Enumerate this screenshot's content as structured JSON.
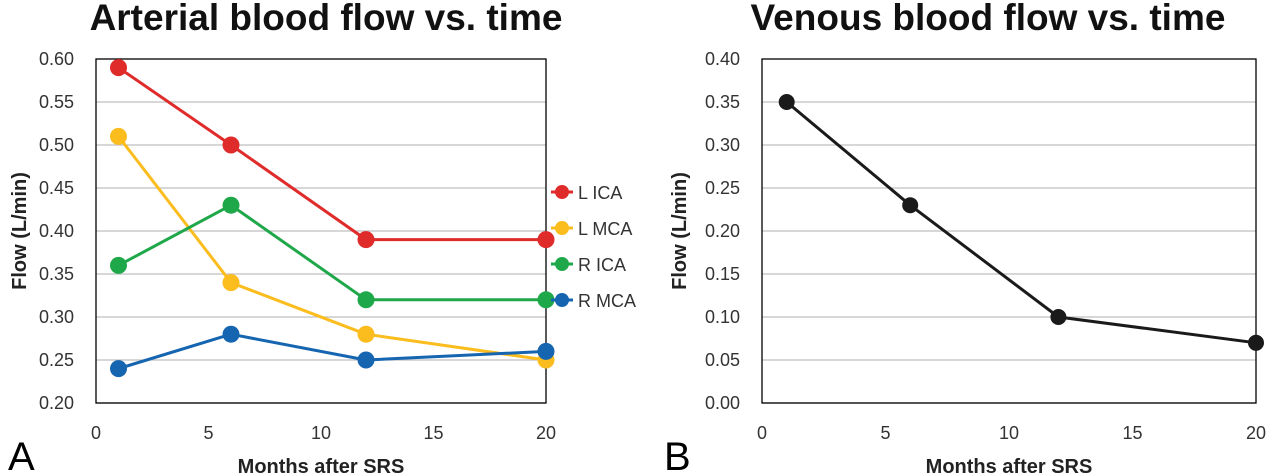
{
  "panels": {
    "a": {
      "label": "A"
    },
    "b": {
      "label": "B"
    }
  },
  "chart_data": [
    {
      "type": "line",
      "title": "Arterial blood flow vs. time",
      "xlabel": "Months after SRS",
      "ylabel": "Flow (L/min)",
      "xlim": [
        0,
        20
      ],
      "ylim": [
        0.2,
        0.6
      ],
      "xticks": [
        "0",
        "5",
        "10",
        "15",
        "20"
      ],
      "yticks": [
        "0.20",
        "0.25",
        "0.30",
        "0.35",
        "0.40",
        "0.45",
        "0.50",
        "0.55",
        "0.60"
      ],
      "grid": true,
      "legend": "right",
      "x": [
        1,
        6,
        12,
        20
      ],
      "series": [
        {
          "name": "L ICA",
          "color": "#e02b2b",
          "values": [
            0.59,
            0.5,
            0.39,
            0.39
          ]
        },
        {
          "name": "L MCA",
          "color": "#fbbc1e",
          "values": [
            0.51,
            0.34,
            0.28,
            0.25
          ]
        },
        {
          "name": "R ICA",
          "color": "#1fa84a",
          "values": [
            0.36,
            0.43,
            0.32,
            0.32
          ]
        },
        {
          "name": "R MCA",
          "color": "#1565b0",
          "values": [
            0.24,
            0.28,
            0.25,
            0.26
          ]
        }
      ]
    },
    {
      "type": "line",
      "title": "Venous blood flow vs. time",
      "xlabel": "Months after SRS",
      "ylabel": "Flow (L/min)",
      "xlim": [
        0,
        20
      ],
      "ylim": [
        0,
        0.4
      ],
      "xticks": [
        "0",
        "5",
        "10",
        "15",
        "20"
      ],
      "yticks": [
        "0.00",
        "0.05",
        "0.10",
        "0.15",
        "0.20",
        "0.25",
        "0.30",
        "0.35",
        "0.40"
      ],
      "grid": true,
      "x": [
        1,
        6,
        12,
        20
      ],
      "series": [
        {
          "color": "#1a1a1a",
          "values": [
            0.35,
            0.23,
            0.1,
            0.07
          ]
        }
      ]
    }
  ]
}
